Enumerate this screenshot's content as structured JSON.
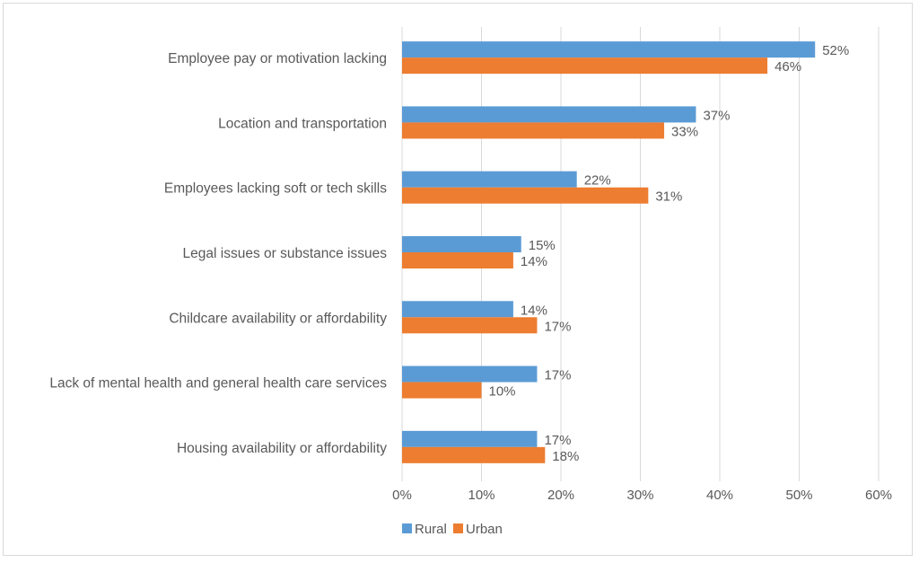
{
  "chart_data": {
    "type": "bar",
    "orientation": "horizontal",
    "categories": [
      "Employee pay or motivation lacking",
      "Location and transportation",
      "Employees lacking soft or tech skills",
      "Legal issues or substance issues",
      "Childcare availability or affordability",
      "Lack of mental health and general health care services",
      "Housing availability or affordability"
    ],
    "series": [
      {
        "name": "Rural",
        "color": "#5b9bd5",
        "values": [
          52,
          37,
          22,
          15,
          14,
          17,
          17
        ],
        "labels": [
          "52%",
          "37%",
          "22%",
          "15%",
          "14%",
          "17%",
          "17%"
        ]
      },
      {
        "name": "Urban",
        "color": "#ed7d31",
        "values": [
          46,
          33,
          31,
          14,
          17,
          10,
          18
        ],
        "labels": [
          "46%",
          "33%",
          "31%",
          "14%",
          "17%",
          "10%",
          "18%"
        ]
      }
    ],
    "xlim": [
      0,
      60
    ],
    "xticks": [
      "0%",
      "10%",
      "20%",
      "30%",
      "40%",
      "50%",
      "60%"
    ],
    "grid": true,
    "legend_position": "bottom",
    "title": "",
    "xlabel": "",
    "ylabel": ""
  }
}
